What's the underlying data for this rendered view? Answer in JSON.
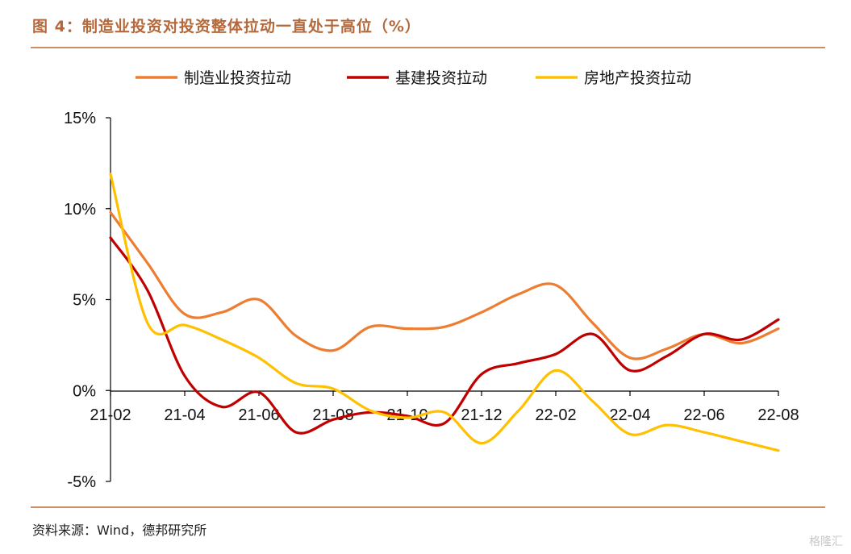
{
  "title": "图 4：制造业投资对投资整体拉动一直处于高位（%）",
  "source": "资料来源：Wind，德邦研究所",
  "watermark": "格隆汇",
  "chart_data": {
    "type": "line",
    "title": "图 4：制造业投资对投资整体拉动一直处于高位（%）",
    "xlabel": "",
    "ylabel": "",
    "x": [
      "21-02",
      "21-03",
      "21-04",
      "21-05",
      "21-06",
      "21-07",
      "21-08",
      "21-09",
      "21-10",
      "21-11",
      "21-12",
      "22-01",
      "22-02",
      "22-03",
      "22-04",
      "22-05",
      "22-06",
      "22-07",
      "22-08"
    ],
    "x_tick_labels": [
      "21-02",
      "21-04",
      "21-06",
      "21-08",
      "21-10",
      "21-12",
      "22-02",
      "22-04",
      "22-06",
      "22-08"
    ],
    "y_tick_labels": [
      "15%",
      "10%",
      "5%",
      "0%",
      "-5%"
    ],
    "ylim": [
      -5,
      15
    ],
    "y_ticks": [
      15,
      10,
      5,
      0,
      -5
    ],
    "grid": false,
    "legend_position": "top",
    "series": [
      {
        "name": "制造业投资拉动",
        "color": "#ed7d31",
        "values": [
          9.8,
          7.0,
          4.2,
          4.3,
          5.0,
          3.0,
          2.2,
          3.5,
          3.4,
          3.5,
          4.3,
          5.3,
          5.8,
          3.7,
          1.8,
          2.3,
          3.1,
          2.6,
          3.4
        ]
      },
      {
        "name": "基建投资拉动",
        "color": "#c00000",
        "values": [
          8.4,
          5.5,
          0.8,
          -0.9,
          -0.1,
          -2.3,
          -1.6,
          -1.2,
          -1.4,
          -1.8,
          0.9,
          1.5,
          2.0,
          3.1,
          1.1,
          1.9,
          3.1,
          2.8,
          3.9
        ]
      },
      {
        "name": "房地产投资拉动",
        "color": "#ffc000",
        "values": [
          11.9,
          3.7,
          3.6,
          2.8,
          1.8,
          0.4,
          0.1,
          -1.1,
          -1.5,
          -1.2,
          -2.9,
          -1.1,
          1.1,
          -0.6,
          -2.4,
          -1.9,
          -2.3,
          -2.8,
          -3.3
        ]
      }
    ]
  }
}
